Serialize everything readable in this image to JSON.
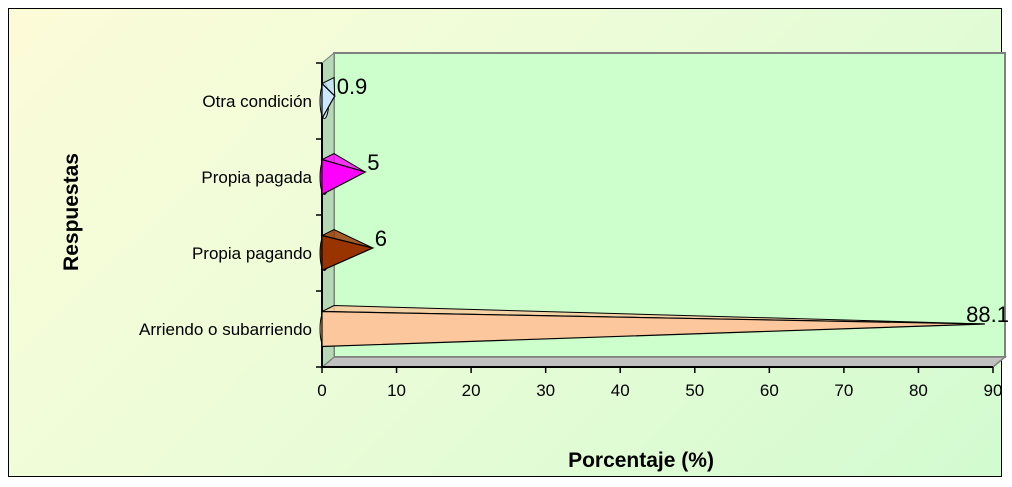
{
  "chart_data": {
    "type": "bar",
    "orientation": "horizontal",
    "style": "3d-cone",
    "categories": [
      "Arriendo o subarriendo",
      "Propia pagando",
      "Propia pagada",
      "Otra condición"
    ],
    "values": [
      88.1,
      6,
      5,
      0.9
    ],
    "data_labels": [
      "88.1",
      "6",
      "5",
      "0.9"
    ],
    "colors": [
      "#fcc79c",
      "#993300",
      "#ff00ff",
      "#cce9ff"
    ],
    "xlabel": "Porcentaje (%)",
    "ylabel": "Respuestas",
    "xlim": [
      0,
      90
    ],
    "xticks": [
      "0",
      "10",
      "20",
      "30",
      "40",
      "50",
      "60",
      "70",
      "80",
      "90"
    ],
    "grid": false,
    "legend": "none",
    "plot_fill": "#ccffcc"
  }
}
